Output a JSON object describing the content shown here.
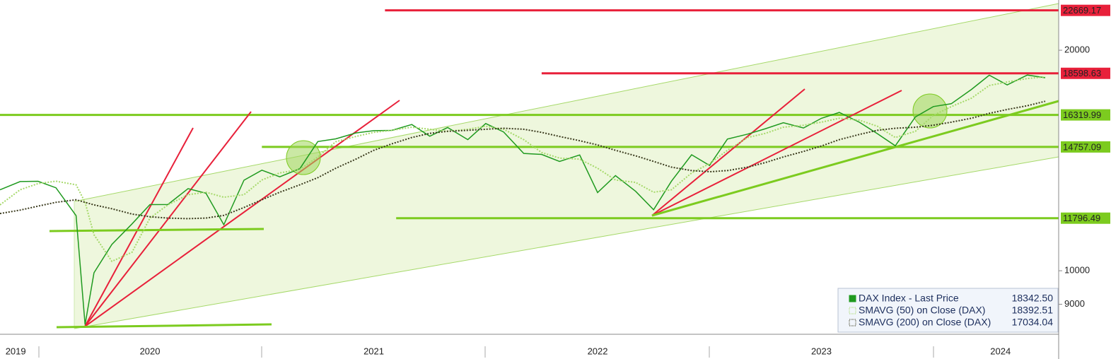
{
  "chart_data": {
    "type": "line",
    "log_scale": true,
    "xlim": [
      2019.83,
      2024.56
    ],
    "ylim": [
      8190,
      23420
    ],
    "yticks": [
      9000,
      10000,
      20000
    ],
    "xticks": [
      {
        "value": 2019.9,
        "label": "2019"
      },
      {
        "value": 2020.5,
        "label": "2020"
      },
      {
        "value": 2021.5,
        "label": "2021"
      },
      {
        "value": 2022.5,
        "label": "2022"
      },
      {
        "value": 2023.5,
        "label": "2023"
      },
      {
        "value": 2024.3,
        "label": "2024"
      }
    ],
    "x": [
      2019.83,
      2019.92,
      2020.0,
      2020.08,
      2020.17,
      2020.21,
      2020.25,
      2020.33,
      2020.42,
      2020.5,
      2020.58,
      2020.67,
      2020.75,
      2020.83,
      2020.92,
      2021.0,
      2021.08,
      2021.17,
      2021.25,
      2021.33,
      2021.42,
      2021.5,
      2021.58,
      2021.67,
      2021.75,
      2021.83,
      2021.92,
      2022.0,
      2022.08,
      2022.17,
      2022.25,
      2022.33,
      2022.42,
      2022.5,
      2022.58,
      2022.67,
      2022.75,
      2022.83,
      2022.92,
      2023.0,
      2023.08,
      2023.17,
      2023.25,
      2023.33,
      2023.42,
      2023.5,
      2023.58,
      2023.67,
      2023.75,
      2023.83,
      2023.92,
      2024.0,
      2024.08,
      2024.17,
      2024.25,
      2024.33,
      2024.42,
      2024.5
    ],
    "series": [
      {
        "name": "DAX Index - Last Price",
        "color": "#1f9a1f",
        "last_label": "18342.50",
        "values": [
          12900,
          13236,
          13249,
          12981,
          11890,
          8442,
          9936,
          10862,
          11587,
          12311,
          12313,
          12945,
          12761,
          11556,
          13291,
          13719,
          13433,
          13786,
          15008,
          15136,
          15421,
          15531,
          15544,
          15835,
          15261,
          15689,
          15100,
          15885,
          15471,
          14461,
          14415,
          14098,
          14388,
          12784,
          13484,
          12835,
          12114,
          13254,
          14397,
          13924,
          15128,
          15365,
          15629,
          15922,
          15664,
          16148,
          16447,
          15947,
          15387,
          14810,
          16215,
          16752,
          16904,
          17678,
          18492,
          17932,
          18498,
          18342.5
        ]
      },
      {
        "name": "SMAVG (50)  on Close (DAX)",
        "color": "#a6d96a",
        "last_label": "18392.51",
        "values": [
          12300,
          12900,
          13150,
          13250,
          13100,
          12400,
          11200,
          10300,
          10600,
          11800,
          12300,
          12700,
          12800,
          12600,
          12700,
          13300,
          13600,
          13750,
          14300,
          15000,
          15250,
          15450,
          15550,
          15700,
          15600,
          15500,
          15600,
          15750,
          15600,
          15100,
          14500,
          14250,
          14200,
          13800,
          13300,
          13200,
          12800,
          12900,
          13600,
          14000,
          14600,
          15200,
          15400,
          15700,
          15800,
          15950,
          16150,
          16050,
          15750,
          15200,
          15500,
          16300,
          16750,
          17200,
          17900,
          18100,
          18300,
          18392.51
        ]
      },
      {
        "name": "SMAVG (200)  on Close (DAX)",
        "color": "#3b3b1e",
        "last_label": "17034.04",
        "values": [
          11970,
          12100,
          12250,
          12400,
          12500,
          12400,
          12300,
          12150,
          11950,
          11850,
          11800,
          11780,
          11800,
          11900,
          12200,
          12500,
          12800,
          13100,
          13400,
          13800,
          14200,
          14600,
          14900,
          15200,
          15400,
          15500,
          15550,
          15600,
          15650,
          15600,
          15450,
          15250,
          15050,
          14850,
          14600,
          14350,
          14100,
          13850,
          13700,
          13650,
          13700,
          13850,
          14050,
          14300,
          14550,
          14800,
          15100,
          15350,
          15550,
          15650,
          15700,
          15800,
          15950,
          16150,
          16400,
          16600,
          16800,
          17034.04
        ]
      }
    ],
    "levels": [
      {
        "value": 22669.17,
        "label": "22669.17",
        "color": "#e8203a",
        "from": 2021.55
      },
      {
        "value": 18598.63,
        "label": "18598.63",
        "color": "#e8203a",
        "from": 2022.25
      },
      {
        "value": 16319.99,
        "label": "16319.99",
        "color": "#7ccb1f",
        "from": 2019.83
      },
      {
        "value": 14757.09,
        "label": "14757.09",
        "color": "#7ccb1f",
        "from": 2021.0
      },
      {
        "value": 11796.49,
        "label": "11796.49",
        "color": "#7ccb1f",
        "from": 2021.6
      }
    ]
  }
}
